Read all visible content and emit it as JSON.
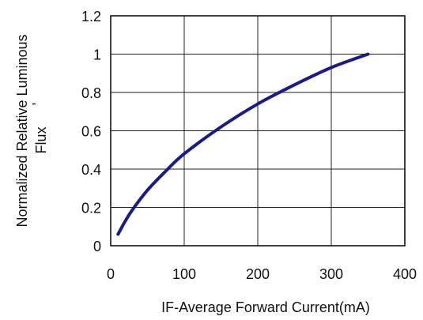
{
  "chart_data": {
    "type": "line",
    "title": "",
    "xlabel": "IF-Average Forward Current(mA)",
    "ylabel_lines": [
      "Normalized Relative Luminous",
      "Flux"
    ],
    "ylabel_mark": "'",
    "xlim": [
      0,
      400
    ],
    "ylim": [
      0,
      1.2
    ],
    "x_ticks": [
      0,
      100,
      200,
      300,
      400
    ],
    "x_tick_labels": [
      "0",
      "100",
      "200",
      "300",
      "400"
    ],
    "y_ticks": [
      0,
      0.2,
      0.4,
      0.6,
      0.8,
      1,
      1.2
    ],
    "y_tick_labels": [
      "0",
      "0.2",
      "0.4",
      "0.6",
      "0.8",
      "1",
      "1.2"
    ],
    "grid": true,
    "series": [
      {
        "color": "#1a1a8c",
        "x": [
          10,
          20,
          30,
          50,
          75,
          100,
          150,
          200,
          250,
          300,
          350
        ],
        "y": [
          0.06,
          0.13,
          0.19,
          0.29,
          0.39,
          0.48,
          0.62,
          0.74,
          0.84,
          0.93,
          1.0
        ]
      }
    ]
  }
}
